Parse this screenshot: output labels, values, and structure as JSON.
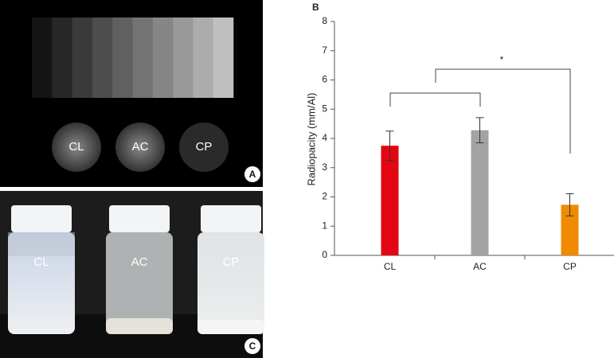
{
  "panel_a": {
    "label": "A",
    "samples": [
      "CL",
      "AC",
      "CP"
    ]
  },
  "panel_c": {
    "label": "C",
    "vials": [
      "CL",
      "AC",
      "CP"
    ]
  },
  "chart_data": {
    "type": "bar",
    "panel_label": "B",
    "y_label": "Radiopacity (mm/Al)",
    "categories": [
      "CL",
      "AC",
      "CP"
    ],
    "values": [
      3.75,
      4.28,
      1.73
    ],
    "errors": [
      0.5,
      0.43,
      0.38
    ],
    "colors": [
      "#e30613",
      "#a3a3a3",
      "#f08a00"
    ],
    "ylim": [
      0,
      8
    ],
    "yticks": [
      0,
      1,
      2,
      3,
      4,
      5,
      6,
      7,
      8
    ],
    "annotation": "*"
  }
}
